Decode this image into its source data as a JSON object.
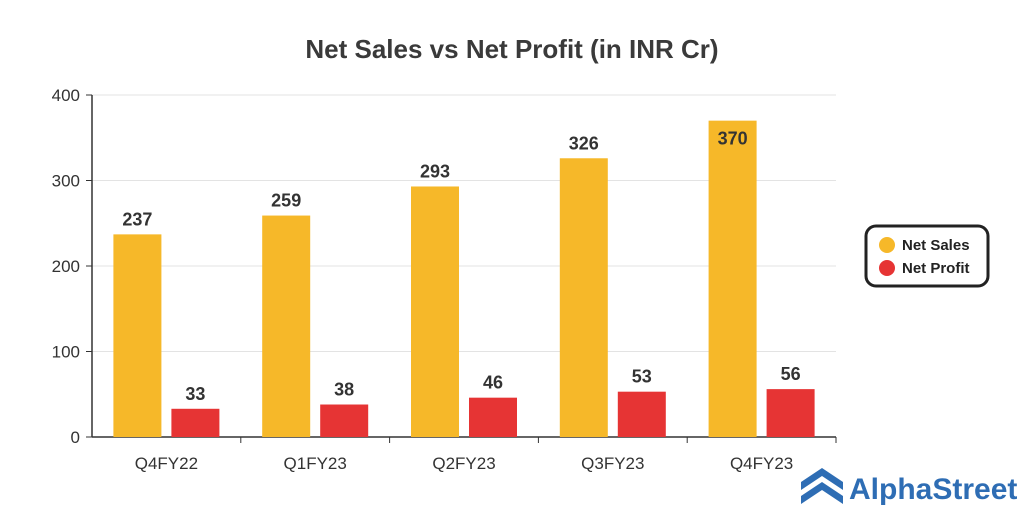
{
  "chart_data": {
    "type": "bar",
    "title": "Net Sales vs Net Profit (in INR Cr)",
    "categories": [
      "Q4FY22",
      "Q1FY23",
      "Q2FY23",
      "Q3FY23",
      "Q4FY23"
    ],
    "series": [
      {
        "name": "Net Sales",
        "values": [
          237,
          259,
          293,
          326,
          370
        ],
        "color": "#F6B829"
      },
      {
        "name": "Net Profit",
        "values": [
          33,
          38,
          46,
          53,
          56
        ],
        "color": "#E63434"
      }
    ],
    "yticks": [
      "0",
      "100",
      "200",
      "300",
      "400"
    ],
    "ylim": [
      0,
      400
    ],
    "grid": true,
    "legend": "right"
  },
  "brand": {
    "name": "AlphaStreet",
    "color": "#2E6DB4"
  }
}
